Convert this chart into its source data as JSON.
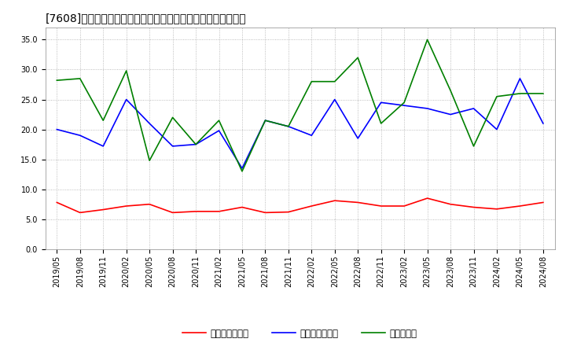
{
  "title": "[7608]　売上債権回転率、買入債務回転率、在庫回転率の推移",
  "dates": [
    "2019/05",
    "2019/08",
    "2019/11",
    "2020/02",
    "2020/05",
    "2020/08",
    "2020/11",
    "2021/02",
    "2021/05",
    "2021/08",
    "2021/11",
    "2022/02",
    "2022/05",
    "2022/08",
    "2022/11",
    "2023/02",
    "2023/05",
    "2023/08",
    "2023/11",
    "2024/02",
    "2024/05",
    "2024/08"
  ],
  "receivables_turnover": [
    7.8,
    6.1,
    6.6,
    7.2,
    7.5,
    6.1,
    6.3,
    6.3,
    7.0,
    6.1,
    6.2,
    7.2,
    8.1,
    7.8,
    7.2,
    7.2,
    8.5,
    7.5,
    7.0,
    6.7,
    7.2,
    7.8
  ],
  "payables_turnover": [
    20.0,
    19.0,
    17.2,
    25.0,
    21.0,
    17.2,
    17.5,
    19.8,
    13.5,
    21.5,
    20.5,
    19.0,
    25.0,
    18.5,
    24.5,
    24.0,
    23.5,
    22.5,
    23.5,
    20.0,
    28.5,
    21.0
  ],
  "inventory_turnover": [
    28.2,
    28.5,
    21.5,
    29.8,
    14.8,
    22.0,
    17.5,
    21.5,
    13.0,
    21.5,
    20.5,
    28.0,
    28.0,
    32.0,
    21.0,
    24.5,
    35.0,
    26.5,
    17.2,
    25.5,
    26.0,
    26.0
  ],
  "receivables_color": "#ff0000",
  "payables_color": "#0000ff",
  "inventory_color": "#008000",
  "legend_labels": [
    "売上債権回転率",
    "買入債務回転率",
    "在庫回転率"
  ],
  "ylim": [
    0.0,
    37.0
  ],
  "yticks": [
    0.0,
    5.0,
    10.0,
    15.0,
    20.0,
    25.0,
    30.0,
    35.0
  ],
  "background_color": "#ffffff",
  "plot_bg_color": "#ffffff",
  "grid_color": "#aaaaaa",
  "title_fontsize": 10,
  "tick_fontsize": 7,
  "legend_fontsize": 8.5
}
